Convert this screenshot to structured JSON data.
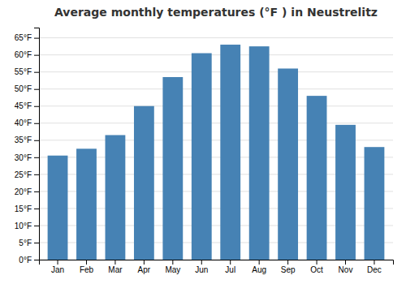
{
  "chart_data": {
    "type": "bar",
    "title": "Average monthly temperatures (°F ) in Neustrelitz",
    "categories": [
      "Jan",
      "Feb",
      "Mar",
      "Apr",
      "May",
      "Jun",
      "Jul",
      "Aug",
      "Sep",
      "Oct",
      "Nov",
      "Dec"
    ],
    "values": [
      30.5,
      32.5,
      36.5,
      45,
      53.5,
      60.5,
      63,
      62.5,
      56,
      48,
      39.5,
      33
    ],
    "ylim": [
      0,
      68
    ],
    "yticks": [
      {
        "value": 0,
        "label": "0°F"
      },
      {
        "value": 5,
        "label": "5°F"
      },
      {
        "value": 10,
        "label": "10°F"
      },
      {
        "value": 15,
        "label": "15°F"
      },
      {
        "value": 20,
        "label": "20°F"
      },
      {
        "value": 25,
        "label": "25°F"
      },
      {
        "value": 30,
        "label": "30°F"
      },
      {
        "value": 35,
        "label": "35°F"
      },
      {
        "value": 40,
        "label": "40°F"
      },
      {
        "value": 45,
        "label": "45°F"
      },
      {
        "value": 50,
        "label": "50°F"
      },
      {
        "value": 55,
        "label": "55°F"
      },
      {
        "value": 60,
        "label": "60°F"
      },
      {
        "value": 65,
        "label": "65°F"
      }
    ],
    "grid": true
  }
}
